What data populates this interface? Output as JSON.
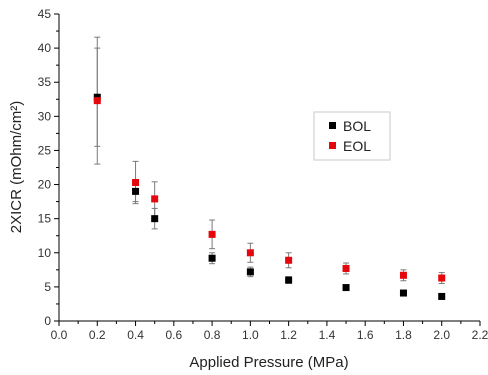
{
  "chart_data": {
    "type": "scatter",
    "xlabel": "Applied Pressure (MPa)",
    "ylabel": "2XICR (mOhm/cm²)",
    "xlim": [
      0.0,
      2.2
    ],
    "ylim": [
      0,
      45
    ],
    "x_ticks": [
      "0.0",
      "0.2",
      "0.4",
      "0.6",
      "0.8",
      "1.0",
      "1.2",
      "1.4",
      "1.6",
      "1.8",
      "2.0",
      "2.2"
    ],
    "y_ticks": [
      "0",
      "5",
      "10",
      "15",
      "20",
      "25",
      "30",
      "35",
      "40",
      "45"
    ],
    "legend_position": "right",
    "grid": false,
    "series": [
      {
        "name": "BOL",
        "color": "#000000",
        "marker": "square",
        "x": [
          0.2,
          0.4,
          0.5,
          0.8,
          1.0,
          1.2,
          1.5,
          1.8,
          2.0
        ],
        "y": [
          32.8,
          19.0,
          15.0,
          9.2,
          7.2,
          6.0,
          4.9,
          4.1,
          3.6
        ],
        "error": [
          7.2,
          1.5,
          1.5,
          0.8,
          0.7,
          0.5,
          0.3,
          0.3,
          0.3
        ]
      },
      {
        "name": "EOL",
        "color": "#e4070b",
        "marker": "square",
        "x": [
          0.2,
          0.4,
          0.5,
          0.8,
          1.0,
          1.2,
          1.5,
          1.8,
          2.0
        ],
        "y": [
          32.3,
          20.3,
          17.9,
          12.7,
          10.0,
          8.9,
          7.7,
          6.7,
          6.3
        ],
        "error": [
          9.3,
          3.1,
          2.5,
          2.1,
          1.4,
          1.1,
          0.8,
          0.8,
          0.8
        ]
      }
    ]
  }
}
